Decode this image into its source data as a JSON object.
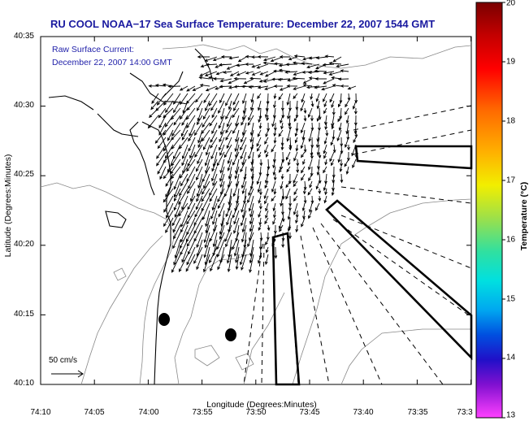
{
  "title": "RU COOL  NOAA−17  Sea Surface Temperature:  December 22, 2007 1544 GMT",
  "current_label": "Raw Surface Current:",
  "current_time": "December 22, 2007 14:00 GMT",
  "scale_label": "50 cm/s",
  "x_axis_title": "Longitude (Degrees:Minutes)",
  "y_axis_title": "Latitude (Degrees:Minutes)",
  "x_ticks": [
    "74:10",
    "74:05",
    "74:00",
    "73:55",
    "73:50",
    "73:45",
    "73:40",
    "73:35",
    "73:3"
  ],
  "y_ticks": [
    "40:35",
    "40:30",
    "40:25",
    "40:20",
    "40:15",
    "40:10"
  ],
  "colorbar": {
    "title": "Temperature (°C)",
    "ticks": [
      "20",
      "19",
      "18",
      "17",
      "16",
      "15",
      "14",
      "13"
    ]
  }
}
